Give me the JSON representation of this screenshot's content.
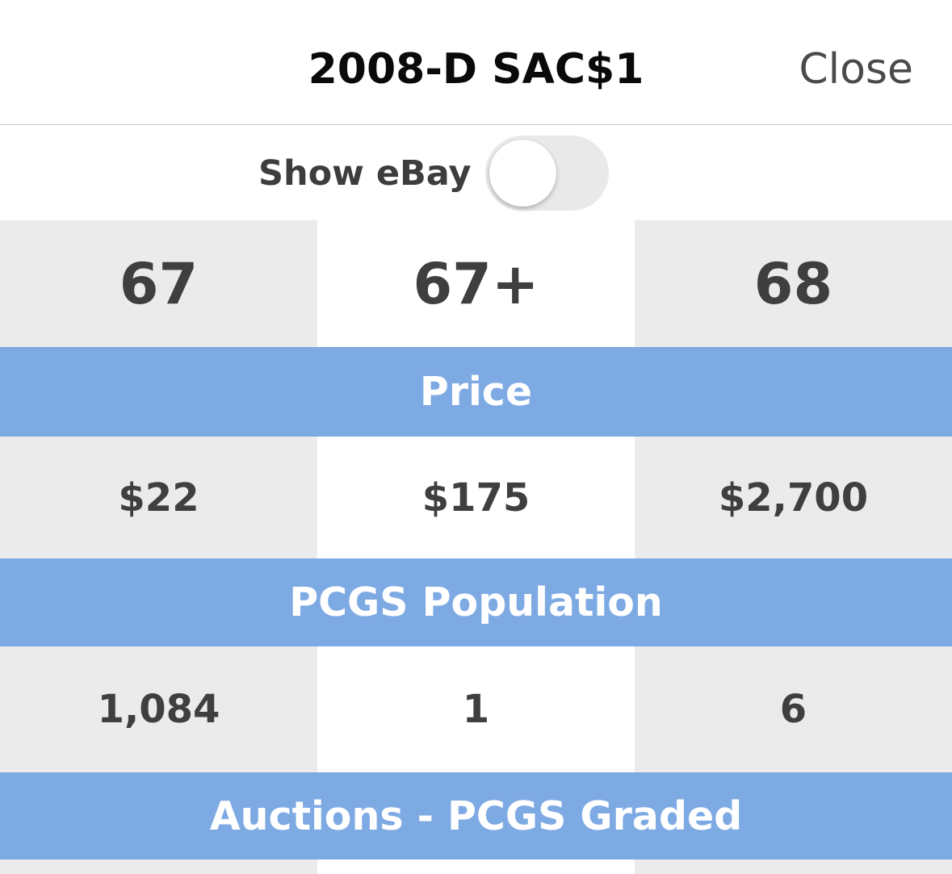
{
  "header": {
    "title": "2008-D SAC$1",
    "close_label": "Close"
  },
  "ebay_toggle": {
    "label": "Show eBay",
    "checked": false
  },
  "grades": [
    "67",
    "67+",
    "68"
  ],
  "sections": {
    "price": "Price",
    "population": "PCGS Population",
    "auctions": "Auctions - PCGS Graded"
  },
  "prices": [
    "$22",
    "$175",
    "$2,700"
  ],
  "population": [
    "1,084",
    "1",
    "6"
  ],
  "colors": {
    "section_header_bg": "#7eaae4",
    "alt_cell_bg": "#ebebeb",
    "value_text": "#3f3f3f",
    "toggle_off_bg": "#e9e9ea"
  }
}
